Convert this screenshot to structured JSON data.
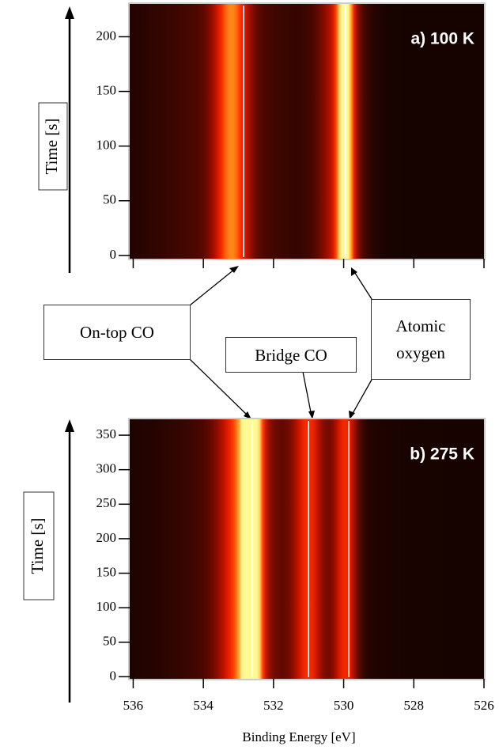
{
  "chart_data": [
    {
      "type": "heatmap",
      "title": "a) 100 K",
      "ylabel": "Time [s]",
      "xlim": [
        536.1,
        526
      ],
      "xticks": [
        536,
        534,
        532,
        530,
        528,
        526
      ],
      "xtick_labels": false,
      "ylim": [
        -3,
        230
      ],
      "yticks": [
        0,
        50,
        100,
        150,
        200
      ],
      "peaks": [
        {
          "center": 533.3,
          "width": 1.6,
          "intensity": 0.18
        },
        {
          "center": 533.2,
          "width": 0.35,
          "intensity": 0.62
        },
        {
          "center": 530.1,
          "width": 0.45,
          "intensity": 0.45
        },
        {
          "center": 529.95,
          "width": 0.17,
          "intensity": 0.75
        }
      ],
      "markers": [
        532.85,
        529.95
      ]
    },
    {
      "type": "heatmap",
      "title": "b) 275 K",
      "xlabel": "Binding Energy [eV]",
      "ylabel": "Time [s]",
      "xlim": [
        536.1,
        526
      ],
      "xticks": [
        536,
        534,
        532,
        530,
        528,
        526
      ],
      "xtick_labels": true,
      "ylim": [
        -3,
        373
      ],
      "yticks": [
        0,
        50,
        100,
        150,
        200,
        250,
        300,
        350
      ],
      "peaks": [
        {
          "center": 532.5,
          "width": 1.7,
          "intensity": 0.2
        },
        {
          "center": 532.9,
          "width": 0.45,
          "intensity": 0.55
        },
        {
          "center": 532.6,
          "width": 0.2,
          "intensity": 0.75
        },
        {
          "center": 531.0,
          "width": 0.3,
          "intensity": 0.5
        },
        {
          "center": 529.95,
          "width": 0.25,
          "intensity": 0.55
        }
      ],
      "markers": [
        532.6,
        531.0,
        529.85
      ]
    }
  ],
  "annotations": [
    "On-top CO",
    "Bridge CO",
    "Atomic oxygen"
  ]
}
